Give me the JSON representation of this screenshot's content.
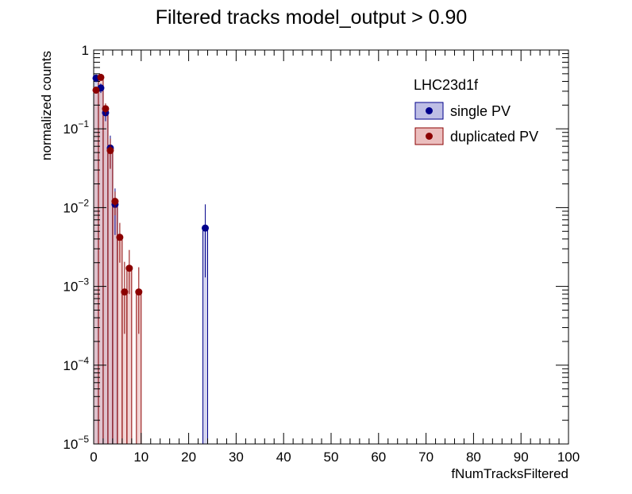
{
  "chart_data": {
    "type": "histogram",
    "title": "Filtered tracks  model_output > 0.90",
    "xlabel": "fNumTracksFiltered",
    "ylabel": "normalized counts",
    "xlim": [
      0,
      100
    ],
    "ylim": [
      1e-05,
      1
    ],
    "yscale": "log",
    "bin_width": 1,
    "x_ticks": [
      0,
      10,
      20,
      30,
      40,
      50,
      60,
      70,
      80,
      90,
      100
    ],
    "y_ticks": [
      {
        "value": 1e-05,
        "base": "10",
        "exp": "−5"
      },
      {
        "value": 0.0001,
        "base": "10",
        "exp": "−4"
      },
      {
        "value": 0.001,
        "base": "10",
        "exp": "−3"
      },
      {
        "value": 0.01,
        "base": "10",
        "exp": "−2"
      },
      {
        "value": 0.1,
        "base": "10",
        "exp": "−1"
      },
      {
        "value": 1,
        "base": "1",
        "exp": ""
      }
    ],
    "legend": {
      "title": "LHC23d1f",
      "position": "top-right"
    },
    "series": [
      {
        "name": "single PV",
        "color": "#00008b",
        "fill": "#b3b3e0",
        "x": [
          0.5,
          1.5,
          2.5,
          3.5,
          4.5,
          23.5
        ],
        "values": [
          0.44,
          0.33,
          0.16,
          0.057,
          0.011,
          0.0055
        ],
        "err_low": [
          0.05,
          0.045,
          0.035,
          0.025,
          0.0065,
          0.0042
        ],
        "err_high": [
          0.05,
          0.045,
          0.035,
          0.025,
          0.0065,
          0.0055
        ]
      },
      {
        "name": "duplicated PV",
        "color": "#8b0000",
        "fill": "#e8b3b3",
        "x": [
          0.5,
          1.5,
          2.5,
          3.5,
          4.5,
          5.5,
          6.5,
          7.5,
          9.5
        ],
        "values": [
          0.31,
          0.45,
          0.18,
          0.053,
          0.012,
          0.0042,
          0.00085,
          0.0017,
          0.00085
        ],
        "err_low": [
          0.03,
          0.04,
          0.03,
          0.022,
          0.004,
          0.0022,
          0.0006,
          0.0009,
          0.0006
        ],
        "err_high": [
          0.03,
          0.04,
          0.03,
          0.022,
          0.004,
          0.0022,
          0.0012,
          0.0012,
          0.0009
        ]
      }
    ]
  }
}
